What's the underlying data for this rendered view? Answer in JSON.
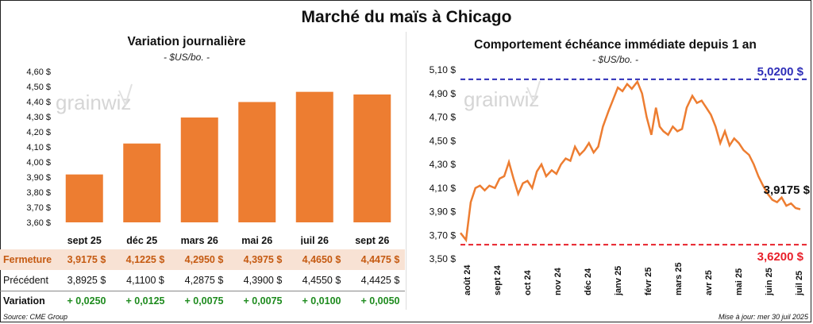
{
  "title": "Marché du maïs à Chicago",
  "left": {
    "subtitle": "Variation journalière",
    "unit": "- $US/bo. -",
    "watermark": "grainwiz",
    "table": {
      "labels": {
        "fermeture": "Fermeture",
        "precedent": "Précédent",
        "variation": "Variation"
      },
      "fermeture": [
        "3,9175  $",
        "4,1225  $",
        "4,2950  $",
        "4,3975  $",
        "4,4650  $",
        "4,4475  $"
      ],
      "precedent": [
        "3,8925  $",
        "4,1100  $",
        "4,2875  $",
        "4,3900  $",
        "4,4550  $",
        "4,4425  $"
      ],
      "variation": [
        "+ 0,0250",
        "+ 0,0125",
        "+ 0,0075",
        "+ 0,0075",
        "+ 0,0100",
        "+ 0,0050"
      ]
    }
  },
  "right": {
    "subtitle": "Comportement  échéance immédiate depuis 1 an",
    "unit": "- $US/bo. -",
    "watermark": "grainwiz",
    "high_label": "5,0200 $",
    "low_label": "3,6200 $",
    "last_label": "3,9175 $"
  },
  "footer": {
    "source": "Source: CME Group",
    "updated": "Mise à jour: mer 30 juil 2025"
  },
  "colors": {
    "bar": "#ED7D31",
    "line": "#ED7D31",
    "high": "#2E2EB8",
    "low": "#E8202A",
    "variation": "#1E8B1E",
    "fermeture_bg": "#F8E2D4"
  },
  "chart_data": [
    {
      "type": "bar",
      "categories": [
        "sept 25",
        "déc 25",
        "mars 26",
        "mai 26",
        "juil 26",
        "sept 26"
      ],
      "values": [
        3.9175,
        4.1225,
        4.295,
        4.3975,
        4.465,
        4.4475
      ],
      "ylim": [
        3.6,
        4.6
      ],
      "yticks": [
        "3,60 $",
        "3,70 $",
        "3,80 $",
        "3,90 $",
        "4,00 $",
        "4,10 $",
        "4,20 $",
        "4,30 $",
        "4,40 $",
        "4,50 $",
        "4,60 $"
      ],
      "grid": false
    },
    {
      "type": "line",
      "x_labels": [
        "août 24",
        "sept 24",
        "oct 24",
        "nov 24",
        "déc 24",
        "janv 25",
        "févr 25",
        "mars 25",
        "avr 25",
        "mai 25",
        "juin 25",
        "juil 25"
      ],
      "x": [
        "2024-07-30",
        "2024-08-05",
        "2024-08-10",
        "2024-08-15",
        "2024-08-20",
        "2024-08-25",
        "2024-08-30",
        "2024-09-05",
        "2024-09-10",
        "2024-09-15",
        "2024-09-20",
        "2024-09-25",
        "2024-09-30",
        "2024-10-05",
        "2024-10-10",
        "2024-10-15",
        "2024-10-20",
        "2024-10-25",
        "2024-10-30",
        "2024-11-05",
        "2024-11-10",
        "2024-11-15",
        "2024-11-20",
        "2024-11-25",
        "2024-11-30",
        "2024-12-05",
        "2024-12-10",
        "2024-12-15",
        "2024-12-20",
        "2024-12-25",
        "2024-12-30",
        "2025-01-05",
        "2025-01-10",
        "2025-01-15",
        "2025-01-20",
        "2025-01-25",
        "2025-01-30",
        "2025-02-05",
        "2025-02-10",
        "2025-02-15",
        "2025-02-20",
        "2025-02-25",
        "2025-03-01",
        "2025-03-05",
        "2025-03-10",
        "2025-03-15",
        "2025-03-20",
        "2025-03-25",
        "2025-03-30",
        "2025-04-05",
        "2025-04-10",
        "2025-04-15",
        "2025-04-20",
        "2025-04-25",
        "2025-04-30",
        "2025-05-05",
        "2025-05-10",
        "2025-05-15",
        "2025-05-20",
        "2025-05-25",
        "2025-05-30",
        "2025-06-05",
        "2025-06-10",
        "2025-06-15",
        "2025-06-20",
        "2025-06-25",
        "2025-06-30",
        "2025-07-05",
        "2025-07-10",
        "2025-07-15",
        "2025-07-20",
        "2025-07-25",
        "2025-07-30"
      ],
      "y": [
        3.72,
        3.66,
        3.98,
        4.1,
        4.12,
        4.08,
        4.12,
        4.1,
        4.18,
        4.2,
        4.32,
        4.18,
        4.05,
        4.14,
        4.16,
        4.1,
        4.24,
        4.3,
        4.2,
        4.25,
        4.22,
        4.3,
        4.35,
        4.33,
        4.45,
        4.38,
        4.42,
        4.48,
        4.4,
        4.45,
        4.62,
        4.75,
        4.85,
        4.95,
        4.92,
        4.98,
        4.94,
        5.0,
        4.9,
        4.7,
        4.55,
        4.78,
        4.62,
        4.58,
        4.55,
        4.62,
        4.58,
        4.6,
        4.78,
        4.88,
        4.82,
        4.84,
        4.78,
        4.72,
        4.62,
        4.48,
        4.58,
        4.46,
        4.52,
        4.48,
        4.42,
        4.38,
        4.3,
        4.2,
        4.12,
        4.05,
        4.0,
        3.98,
        4.02,
        3.95,
        3.97,
        3.93,
        3.92
      ],
      "ylim": [
        3.5,
        5.1
      ],
      "yticks": [
        "3,50 $",
        "3,70 $",
        "3,90 $",
        "4,10 $",
        "4,30 $",
        "4,50 $",
        "4,70 $",
        "4,90 $",
        "5,10 $"
      ],
      "high": 5.02,
      "low": 3.62,
      "last": 3.9175,
      "grid": false
    }
  ]
}
